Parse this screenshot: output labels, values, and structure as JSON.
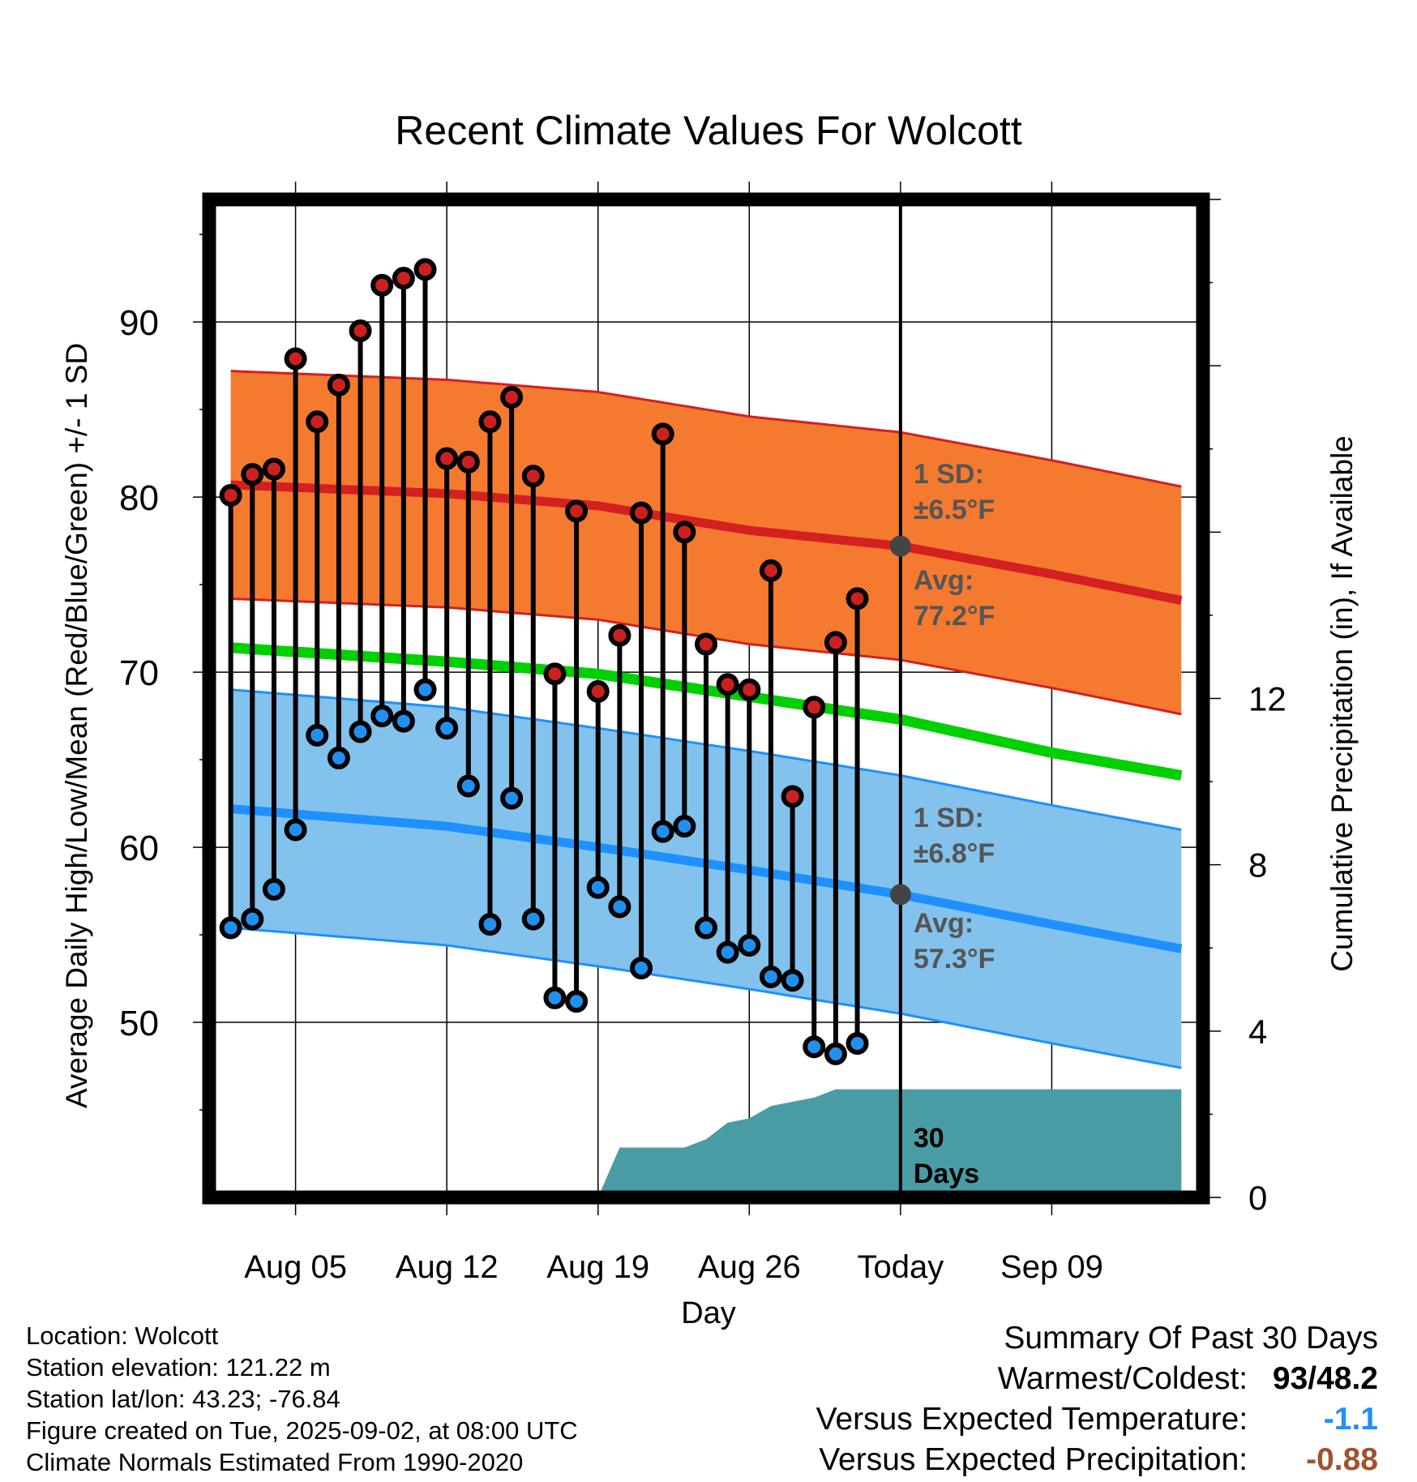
{
  "chart_data": {
    "type": "line",
    "title": "Recent Climate Values For Wolcott",
    "xlabel": "Day",
    "ylabel": "Average Daily High/Low/Mean (Red/Blue/Green) +/- 1 SD",
    "y2label": "Cumulative Precipitation (in), If Available",
    "ylim": [
      40,
      97
    ],
    "y2lim": [
      0,
      24
    ],
    "xlim": [
      -1,
      45
    ],
    "x_ticks": [
      {
        "x": 3,
        "label": "Aug 05"
      },
      {
        "x": 10,
        "label": "Aug 12"
      },
      {
        "x": 17,
        "label": "Aug 19"
      },
      {
        "x": 24,
        "label": "Aug 26"
      },
      {
        "x": 31,
        "label": "Today"
      },
      {
        "x": 38,
        "label": "Sep 09"
      }
    ],
    "y_ticks": [
      50,
      60,
      70,
      80,
      90
    ],
    "y2_ticks": [
      0,
      4,
      8,
      12
    ],
    "grid": true,
    "highs": [
      80.1,
      81.3,
      81.6,
      87.9,
      84.3,
      86.4,
      89.5,
      92.1,
      92.5,
      93.0,
      82.2,
      82.0,
      84.3,
      85.7,
      81.2,
      69.9,
      79.2,
      68.9,
      72.1,
      79.1,
      83.6,
      78.0,
      71.6,
      69.3,
      69.0,
      75.8,
      62.9,
      68.0,
      71.7,
      74.2
    ],
    "lows": [
      55.4,
      55.9,
      57.6,
      61.0,
      66.4,
      65.1,
      66.6,
      67.5,
      67.2,
      69.0,
      66.8,
      63.5,
      55.6,
      62.8,
      55.9,
      51.4,
      51.2,
      57.7,
      56.6,
      53.1,
      60.9,
      61.2,
      55.4,
      54.0,
      54.4,
      52.6,
      52.4,
      48.6,
      48.2,
      48.8
    ],
    "normal_high_anchors": [
      [
        0,
        80.7
      ],
      [
        10,
        80.2
      ],
      [
        17,
        79.5
      ],
      [
        24,
        78.1
      ],
      [
        31,
        77.2
      ],
      [
        38,
        75.6
      ],
      [
        44,
        74.1
      ]
    ],
    "normal_low_anchors": [
      [
        0,
        62.2
      ],
      [
        10,
        61.2
      ],
      [
        17,
        60.0
      ],
      [
        24,
        58.7
      ],
      [
        31,
        57.3
      ],
      [
        38,
        55.6
      ],
      [
        44,
        54.2
      ]
    ],
    "normal_mean_anchors": [
      [
        0,
        71.4
      ],
      [
        10,
        70.6
      ],
      [
        17,
        69.9
      ],
      [
        24,
        68.6
      ],
      [
        31,
        67.3
      ],
      [
        38,
        65.4
      ],
      [
        44,
        64.1
      ]
    ],
    "high_sd": 6.5,
    "low_sd": 6.8,
    "precip_cumulative": [
      [
        17,
        0
      ],
      [
        18,
        1.2
      ],
      [
        19,
        1.2
      ],
      [
        20,
        1.2
      ],
      [
        21,
        1.2
      ],
      [
        22,
        1.4
      ],
      [
        23,
        1.8
      ],
      [
        24,
        1.9
      ],
      [
        25,
        2.2
      ],
      [
        26,
        2.3
      ],
      [
        27,
        2.4
      ],
      [
        28,
        2.6
      ],
      [
        29,
        2.6
      ],
      [
        30,
        2.6
      ],
      [
        31,
        2.6
      ],
      [
        44,
        2.6
      ]
    ],
    "annotations": {
      "high_sd_label_1": "1 SD:",
      "high_sd_label_2": "±6.5°F",
      "high_avg_label_1": "Avg:",
      "high_avg_label_2": "77.2°F",
      "low_sd_label_1": "1 SD:",
      "low_sd_label_2": "±6.8°F",
      "low_avg_label_1": "Avg:",
      "low_avg_label_2": "57.3°F",
      "days_label_1": "30",
      "days_label_2": "Days"
    },
    "colors": {
      "high_band": "#f47a30",
      "high_line": "#d42020",
      "low_band": "#82c2ec",
      "low_line": "#1e90ff",
      "mean_line": "#00d000",
      "precip": "#4a9ca4",
      "high_dot": "#cc2020",
      "low_dot": "#2090f0",
      "marker": "#444444"
    }
  },
  "footer": {
    "location": "Location: Wolcott",
    "elevation": "Station elevation: 121.22 m",
    "latlon": "Station lat/lon: 43.23; -76.84",
    "created": "Figure created on Tue, 2025-09-02, at 08:00 UTC",
    "normals": "Climate Normals Estimated From 1990-2020"
  },
  "summary": {
    "title": "Summary Of Past 30 Days",
    "warmest_label": "Warmest/Coldest:",
    "warmest_value": "93/48.2",
    "temp_label": "Versus Expected Temperature:",
    "temp_value": "-1.1",
    "temp_color": "#1e90ff",
    "precip_label": "Versus Expected Precipitation:",
    "precip_value": "-0.88",
    "precip_color": "#a0522d"
  }
}
